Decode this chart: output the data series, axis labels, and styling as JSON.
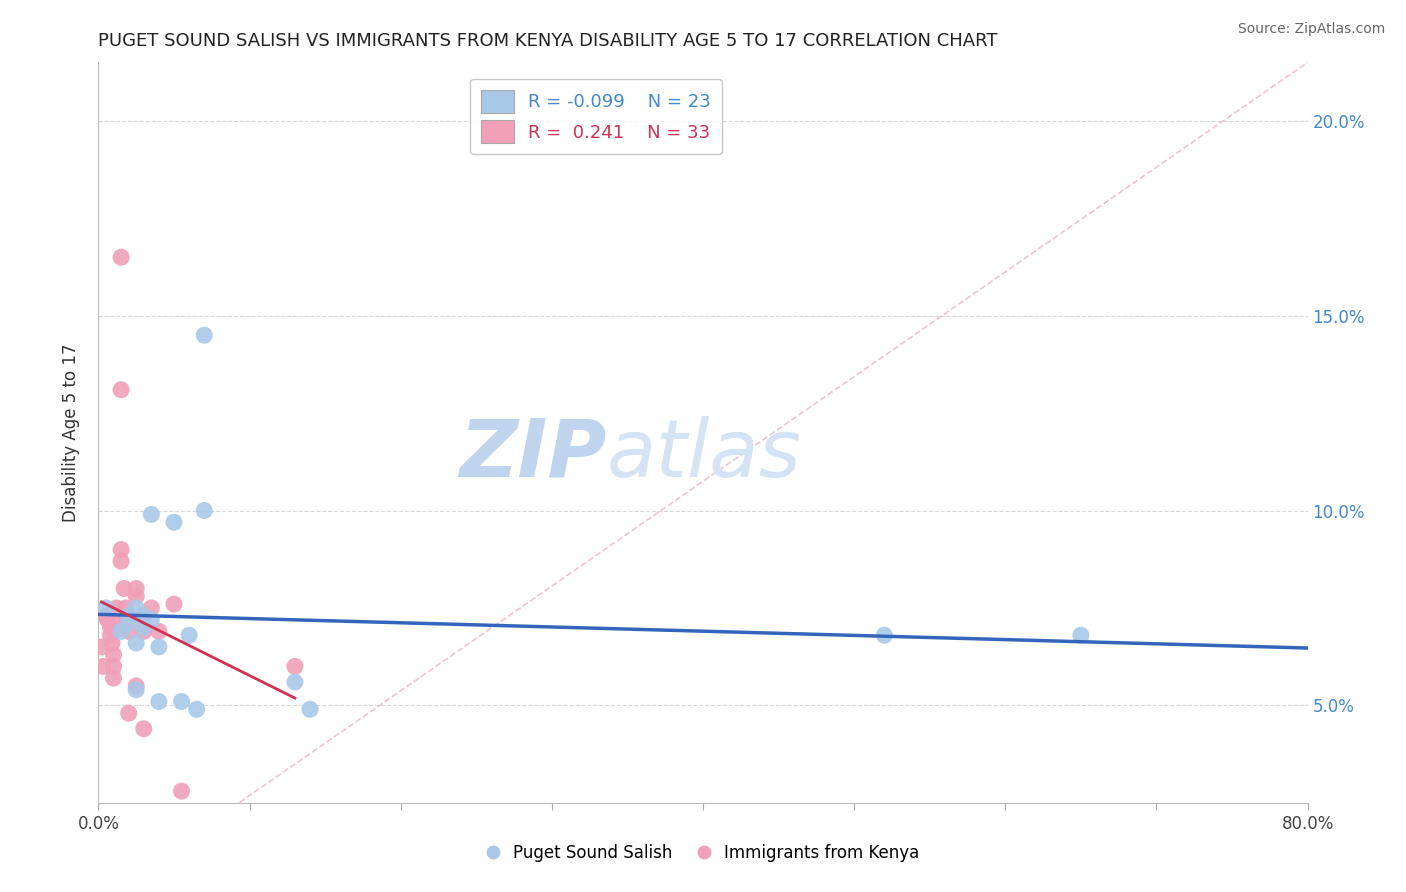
{
  "title": "PUGET SOUND SALISH VS IMMIGRANTS FROM KENYA DISABILITY AGE 5 TO 17 CORRELATION CHART",
  "source": "Source: ZipAtlas.com",
  "ylabel": "Disability Age 5 to 17",
  "xlim": [
    0.0,
    0.8
  ],
  "ylim": [
    0.025,
    0.215
  ],
  "xticks": [
    0.0,
    0.1,
    0.2,
    0.3,
    0.4,
    0.5,
    0.6,
    0.7,
    0.8
  ],
  "xtick_labels": [
    "0.0%",
    "",
    "",
    "",
    "",
    "",
    "",
    "",
    "80.0%"
  ],
  "yticks": [
    0.05,
    0.1,
    0.15,
    0.2
  ],
  "ytick_labels": [
    "5.0%",
    "10.0%",
    "15.0%",
    "20.0%"
  ],
  "blue_label": "Puget Sound Salish",
  "pink_label": "Immigrants from Kenya",
  "blue_R": -0.099,
  "blue_N": 23,
  "pink_R": 0.241,
  "pink_N": 33,
  "blue_color": "#a8c8e8",
  "pink_color": "#f0a0b8",
  "blue_line_color": "#3366bb",
  "pink_line_color": "#cc3355",
  "diag_color": "#e0b0b8",
  "watermark_zip": "ZIP",
  "watermark_atlas": "atlas",
  "watermark_color": "#d0e4f4",
  "blue_x": [
    0.005,
    0.015,
    0.02,
    0.02,
    0.025,
    0.025,
    0.025,
    0.03,
    0.03,
    0.035,
    0.035,
    0.04,
    0.04,
    0.05,
    0.055,
    0.06,
    0.065,
    0.07,
    0.07,
    0.13,
    0.14,
    0.52,
    0.65
  ],
  "blue_y": [
    0.075,
    0.069,
    0.073,
    0.071,
    0.075,
    0.066,
    0.054,
    0.073,
    0.07,
    0.099,
    0.072,
    0.065,
    0.051,
    0.097,
    0.051,
    0.068,
    0.049,
    0.145,
    0.1,
    0.056,
    0.049,
    0.068,
    0.068
  ],
  "pink_x": [
    0.002,
    0.003,
    0.005,
    0.006,
    0.008,
    0.008,
    0.009,
    0.01,
    0.01,
    0.01,
    0.012,
    0.012,
    0.015,
    0.015,
    0.015,
    0.015,
    0.017,
    0.018,
    0.018,
    0.019,
    0.02,
    0.02,
    0.025,
    0.025,
    0.025,
    0.03,
    0.03,
    0.03,
    0.035,
    0.04,
    0.05,
    0.055,
    0.13
  ],
  "pink_y": [
    0.065,
    0.06,
    0.073,
    0.072,
    0.07,
    0.068,
    0.066,
    0.063,
    0.06,
    0.057,
    0.075,
    0.071,
    0.165,
    0.131,
    0.09,
    0.087,
    0.08,
    0.075,
    0.073,
    0.071,
    0.069,
    0.048,
    0.08,
    0.078,
    0.055,
    0.073,
    0.069,
    0.044,
    0.075,
    0.069,
    0.076,
    0.028,
    0.06
  ],
  "grid_color": "#cccccc",
  "background_color": "#ffffff",
  "legend_R_blue_text": "R = -0.099    N = 23",
  "legend_R_pink_text": "R =  0.241    N = 33"
}
